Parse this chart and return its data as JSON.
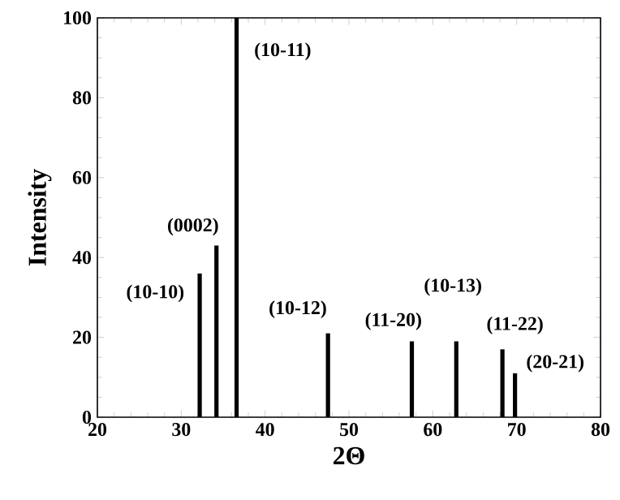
{
  "chart_data": {
    "type": "bar",
    "xlabel": "2Θ",
    "ylabel": "Intensity",
    "x": [
      32.2,
      34.2,
      36.6,
      47.5,
      57.5,
      62.8,
      68.3,
      69.8
    ],
    "values": [
      36,
      43,
      100,
      21,
      19,
      19,
      17,
      11
    ],
    "color": "#000000",
    "xlim": [
      20,
      80
    ],
    "xticks": [
      20,
      30,
      40,
      50,
      60,
      70,
      80
    ],
    "ylim": [
      0,
      100
    ],
    "yticks": [
      0,
      20,
      40,
      60,
      80,
      100
    ],
    "annotations": [
      {
        "text": "(10-10)",
        "x": 32.2,
        "y": 36
      },
      {
        "text": "(0002)",
        "x": 34.2,
        "y": 43
      },
      {
        "text": "(10-11)",
        "x": 36.6,
        "y": 100
      },
      {
        "text": "(10-12)",
        "x": 47.5,
        "y": 21
      },
      {
        "text": "(11-20)",
        "x": 57.5,
        "y": 19
      },
      {
        "text": "(10-13)",
        "x": 62.8,
        "y": 19
      },
      {
        "text": "(11-22)",
        "x": 68.3,
        "y": 17
      },
      {
        "text": "(20-21)",
        "x": 69.8,
        "y": 11
      }
    ],
    "grid": false
  }
}
